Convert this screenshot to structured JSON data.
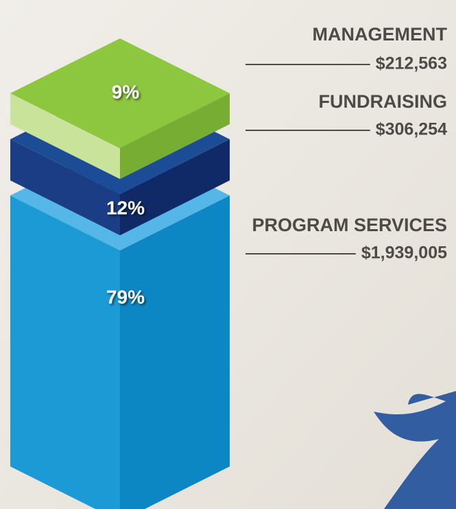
{
  "chart_data": {
    "type": "isometric-stack",
    "categories": [
      "MANAGEMENT",
      "FUNDRAISING",
      "PROGRAM SERVICES"
    ],
    "values": [
      212563,
      306254,
      1939005
    ],
    "value_labels": [
      "$212,563",
      "$306,254",
      "$1,939,005"
    ],
    "percents": [
      9,
      12,
      79
    ],
    "percent_labels": [
      "9%",
      "12%",
      "79%"
    ],
    "colors": [
      {
        "top": "#8dc63f",
        "left": "#c9e39b",
        "right": "#78ad34"
      },
      {
        "top": "#1d4c97",
        "left": "#1a3d85",
        "right": "#0f2a66"
      },
      {
        "top": "#56b6e8",
        "left": "#1b9ad6",
        "right": "#0d87c3"
      }
    ]
  }
}
